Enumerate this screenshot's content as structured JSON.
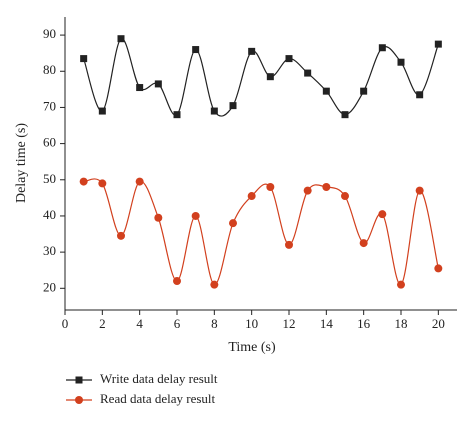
{
  "chart_data": {
    "type": "line",
    "smooth": true,
    "xlabel": "Time (s)",
    "ylabel": "Delay time (s)",
    "x": [
      1,
      2,
      3,
      4,
      5,
      6,
      7,
      8,
      9,
      10,
      11,
      12,
      13,
      14,
      15,
      16,
      17,
      18,
      19,
      20
    ],
    "series": [
      {
        "name": "Write data delay result",
        "color": "#222222",
        "marker": "square",
        "values": [
          83.5,
          69,
          89,
          75.5,
          76.5,
          68,
          86,
          69,
          70.5,
          85.5,
          78.5,
          83.5,
          79.5,
          74.5,
          68,
          74.5,
          86.5,
          82.5,
          73.5,
          87.5
        ]
      },
      {
        "name": "Read data delay result",
        "color": "#d2401e",
        "marker": "circle",
        "values": [
          49.5,
          49,
          34.5,
          49.5,
          39.5,
          22,
          40,
          21,
          38,
          45.5,
          48,
          32,
          47,
          48,
          45.5,
          32.5,
          40.5,
          21,
          47,
          25.5
        ]
      }
    ],
    "xlim": [
      0,
      21
    ],
    "xticks": [
      0,
      2,
      4,
      6,
      8,
      10,
      12,
      14,
      16,
      18,
      20
    ],
    "ylim": [
      14,
      95
    ],
    "yticks": [
      20,
      30,
      40,
      50,
      60,
      70,
      80,
      90
    ],
    "legend": "below"
  }
}
